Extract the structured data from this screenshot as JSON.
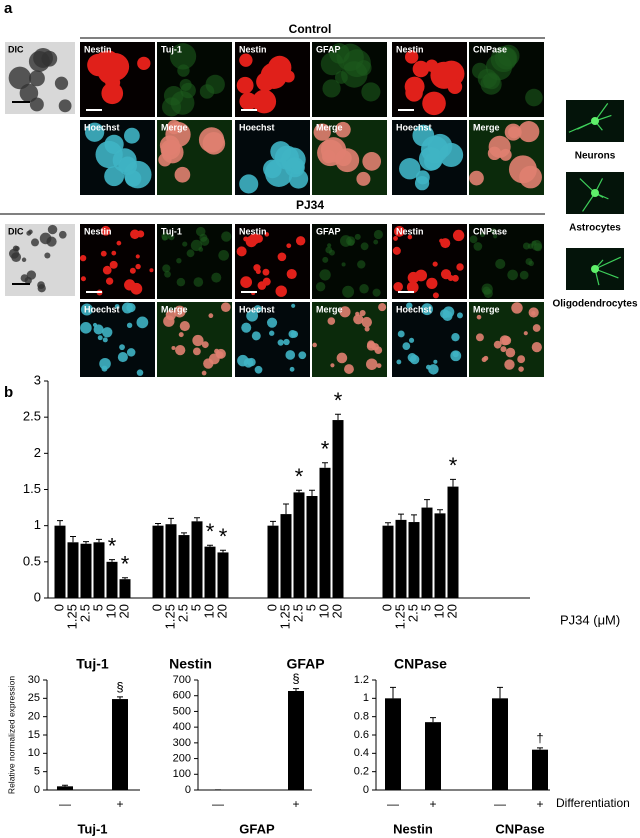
{
  "panel_a": {
    "panel": "a",
    "conditions": [
      "Control",
      "PJ34"
    ],
    "dic": "DIC",
    "top_labels": [
      "Nestin",
      "Tuj-1",
      "Nestin",
      "GFAP",
      "Nestin",
      "CNPase"
    ],
    "bottom_labels": [
      "Hoechst",
      "Merge",
      "Hoechst",
      "Merge",
      "Hoechst",
      "Merge"
    ],
    "cell_types": [
      "Neurons",
      "Astrocytes",
      "Oligodendrocytes"
    ]
  },
  "panel_b": {
    "panel": "b"
  },
  "chart_data": [
    {
      "type": "bar",
      "xlabel": "PJ34 (μM)",
      "categories": [
        "0",
        "1.25",
        "2.5",
        "5",
        "10",
        "20"
      ],
      "ylim": [
        0,
        3
      ],
      "yticks": [
        0,
        0.5,
        1,
        1.5,
        2,
        2.5,
        3
      ],
      "color": "#000000",
      "series": [
        {
          "name": "Tuj-1",
          "values": [
            1.0,
            0.77,
            0.75,
            0.77,
            0.5,
            0.26
          ],
          "errors": [
            0.07,
            0.08,
            0.03,
            0.04,
            0.03,
            0.02
          ],
          "annotations": [
            null,
            null,
            null,
            null,
            "*",
            "*"
          ]
        },
        {
          "name": "Nestin",
          "values": [
            1.0,
            1.02,
            0.87,
            1.06,
            0.71,
            0.63
          ],
          "errors": [
            0.03,
            0.08,
            0.03,
            0.05,
            0.02,
            0.03
          ],
          "annotations": [
            null,
            null,
            null,
            null,
            "*",
            "*"
          ]
        },
        {
          "name": "GFAP",
          "values": [
            1.0,
            1.16,
            1.46,
            1.41,
            1.8,
            2.46
          ],
          "errors": [
            0.06,
            0.14,
            0.03,
            0.08,
            0.07,
            0.08
          ],
          "annotations": [
            null,
            null,
            "*",
            null,
            "*",
            "*"
          ]
        },
        {
          "name": "CNPase",
          "values": [
            1.0,
            1.08,
            1.05,
            1.25,
            1.17,
            1.54
          ],
          "errors": [
            0.04,
            0.08,
            0.1,
            0.11,
            0.05,
            0.1
          ],
          "annotations": [
            null,
            null,
            null,
            null,
            null,
            "*"
          ]
        }
      ]
    },
    {
      "type": "bar",
      "ylabel": "Relative normalized expression",
      "categories": [
        "—",
        "+"
      ],
      "ylim": [
        0,
        30
      ],
      "yticks": [
        0,
        5,
        10,
        15,
        20,
        25,
        30
      ],
      "color": "#000000",
      "series": [
        {
          "name": "Tuj-1",
          "values": [
            1,
            24.8
          ],
          "errors": [
            0.3,
            0.6
          ],
          "annotations": [
            null,
            "§"
          ]
        }
      ]
    },
    {
      "type": "bar",
      "categories": [
        "—",
        "+"
      ],
      "ylim": [
        0,
        700
      ],
      "yticks": [
        0,
        100,
        200,
        300,
        400,
        500,
        600,
        700
      ],
      "color": "#000000",
      "series": [
        {
          "name": "GFAP",
          "values": [
            1,
            630
          ],
          "errors": [
            0,
            15
          ],
          "annotations": [
            null,
            "§"
          ]
        }
      ]
    },
    {
      "type": "bar",
      "xlabel": "Differentiation",
      "categories": [
        "—",
        "+"
      ],
      "ylim": [
        0,
        1.2
      ],
      "yticks": [
        0,
        0.2,
        0.4,
        0.6,
        0.8,
        1,
        1.2
      ],
      "color": "#000000",
      "series": [
        {
          "name": "Nestin",
          "values": [
            1.0,
            0.74
          ],
          "errors": [
            0.12,
            0.05
          ],
          "annotations": [
            null,
            null
          ]
        },
        {
          "name": "CNPase",
          "values": [
            1.0,
            0.44
          ],
          "errors": [
            0.12,
            0.02
          ],
          "annotations": [
            null,
            "†"
          ]
        }
      ]
    }
  ]
}
